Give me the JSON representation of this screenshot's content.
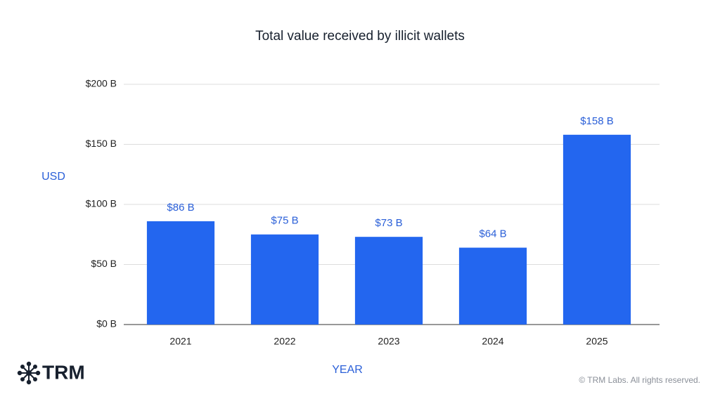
{
  "chart_data": {
    "type": "bar",
    "title": "Total value received by illicit wallets",
    "y_label": "USD",
    "x_label": "YEAR",
    "categories": [
      "2021",
      "2022",
      "2023",
      "2024",
      "2025"
    ],
    "values": [
      86,
      75,
      73,
      64,
      158
    ],
    "value_labels": [
      "$86 B",
      "$75 B",
      "$73 B",
      "$64 B",
      "$158 B"
    ],
    "color": "#2366ef",
    "ylim": [
      0,
      200
    ],
    "yticks": [
      {
        "value": 0,
        "label": "$0 B"
      },
      {
        "value": 50,
        "label": "$50 B"
      },
      {
        "value": 100,
        "label": "$100 B"
      },
      {
        "value": 150,
        "label": "$150 B"
      },
      {
        "value": 200,
        "label": "$200 B"
      }
    ],
    "grid": true
  },
  "brand": "TRM",
  "copyright": "© TRM Labs. All rights reserved."
}
